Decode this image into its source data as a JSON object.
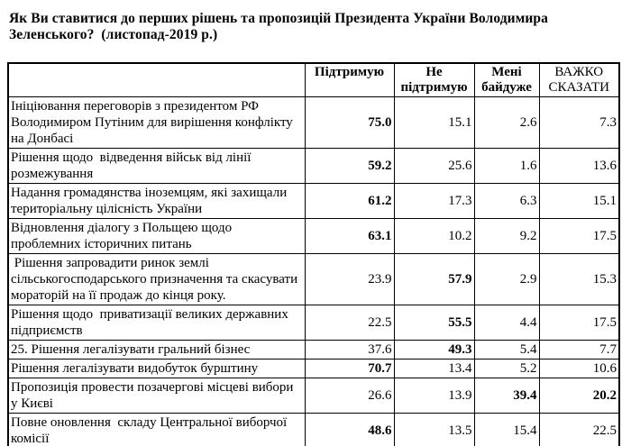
{
  "title": "Як Ви ставитися до перших рішень та пропозицій Президента України Володимира Зеленського?  (листопад-2019 р.)",
  "table": {
    "columns": [
      "",
      "Підтримую",
      "Не підтримую",
      "Мені байдуже",
      "ВАЖКО СКАЗАТИ"
    ],
    "rows": [
      {
        "question": "Ініціювання переговорів з президентом РФ Володимиром Путіним для вирішення конфлікту на Донбасі",
        "values": [
          "75.0",
          "15.1",
          "2.6",
          "7.3"
        ],
        "bold_cols": [
          0
        ]
      },
      {
        "question": "Рішення щодо  відведення військ від лінії розмежування",
        "values": [
          "59.2",
          "25.6",
          "1.6",
          "13.6"
        ],
        "bold_cols": [
          0
        ]
      },
      {
        "question": "Надання громадянства іноземцям, які захищали територіальну цілісність України",
        "values": [
          "61.2",
          "17.3",
          "6.3",
          "15.1"
        ],
        "bold_cols": [
          0
        ]
      },
      {
        "question": "Відновлення діалогу з Польщею щодо проблемних історичних питань",
        "values": [
          "63.1",
          "10.2",
          "9.2",
          "17.5"
        ],
        "bold_cols": [
          0
        ]
      },
      {
        "question": " Рішення запровадити ринок землі сільськогосподарського призначення та скасувати мораторій на її продаж до кінця року.",
        "values": [
          "23.9",
          "57.9",
          "2.9",
          "15.3"
        ],
        "bold_cols": [
          1
        ]
      },
      {
        "question": "Рішення щодо  приватизації великих державних підприємств",
        "values": [
          "22.5",
          "55.5",
          "4.4",
          "17.5"
        ],
        "bold_cols": [
          1
        ]
      },
      {
        "question": "25. Рішення легалізувати гральний бізнес",
        "values": [
          "37.6",
          "49.3",
          "5.4",
          "7.7"
        ],
        "bold_cols": [
          1
        ]
      },
      {
        "question": "Рішення легалізувати видобуток бурштину",
        "values": [
          "70.7",
          "13.4",
          "5.2",
          "10.6"
        ],
        "bold_cols": [
          0
        ]
      },
      {
        "question": "Пропозиція провести позачергові місцеві вибори у Києві",
        "values": [
          "26.6",
          "13.9",
          "39.4",
          "20.2"
        ],
        "bold_cols": [
          2,
          3
        ]
      },
      {
        "question": "Повне оновлення  складу Центральної виборчої комісії",
        "values": [
          "48.6",
          "13.5",
          "15.4",
          "22.5"
        ],
        "bold_cols": [
          0
        ]
      }
    ]
  }
}
